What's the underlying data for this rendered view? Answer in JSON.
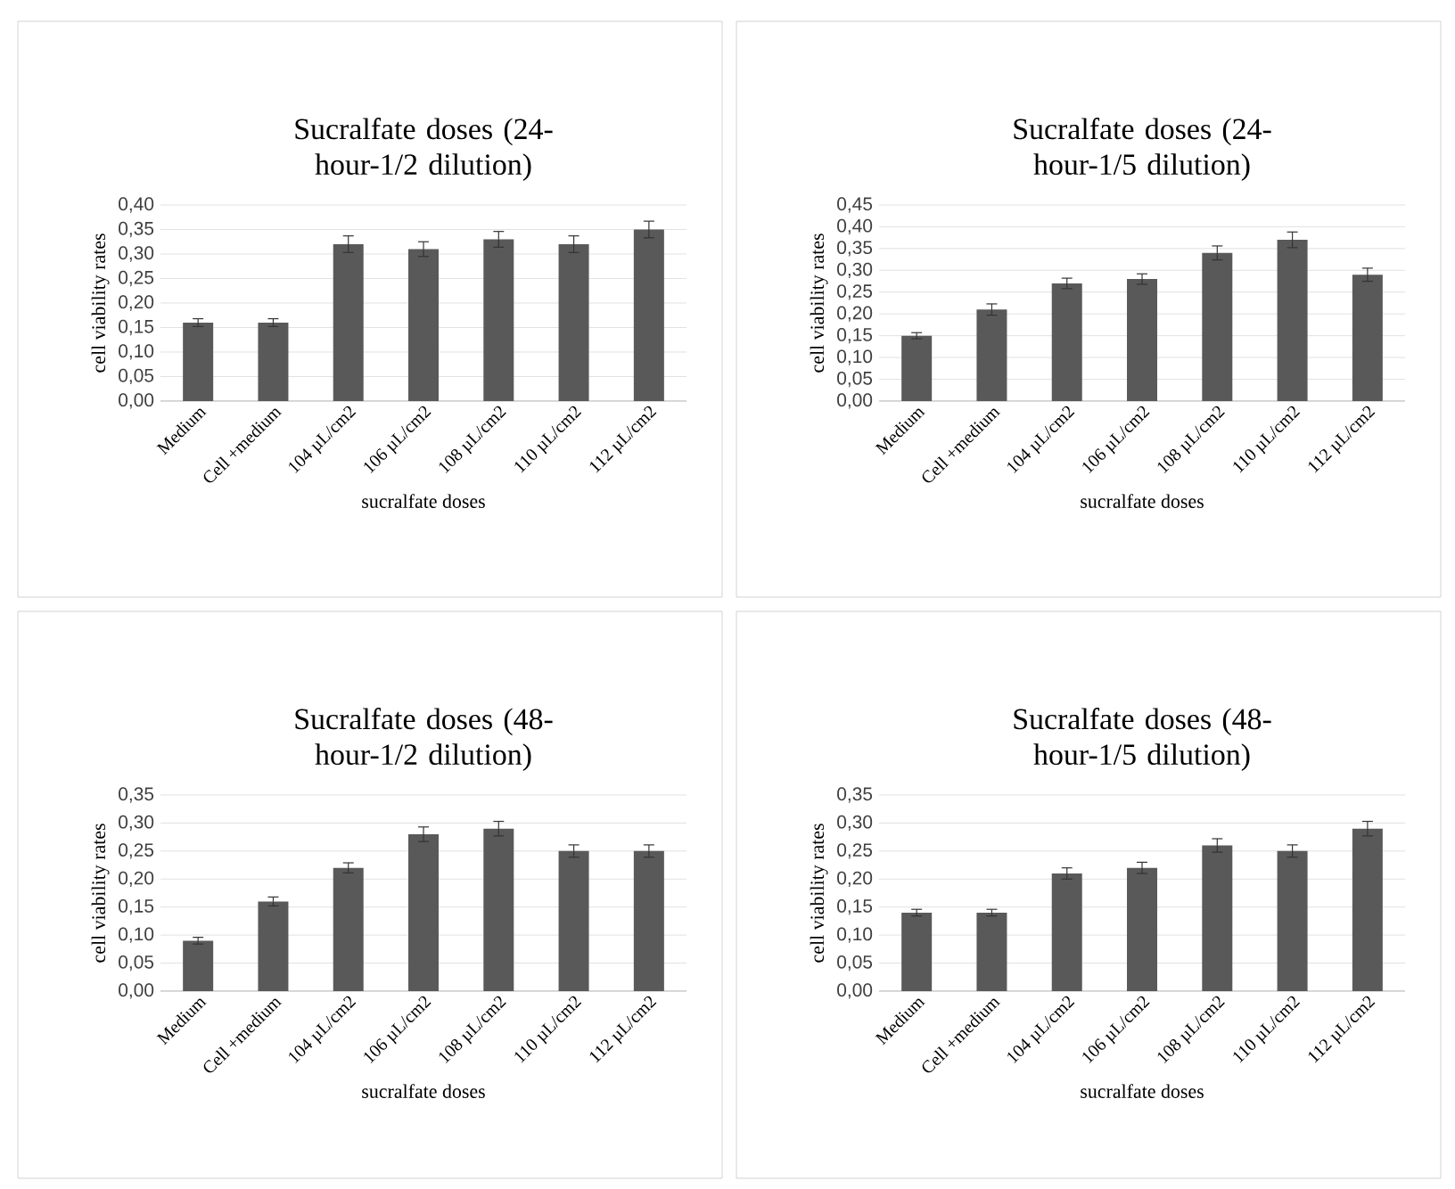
{
  "chart_data": [
    {
      "type": "bar",
      "title": "Sucralfate doses (24-hour-1/2 dilution)",
      "xlabel": "sucralfate doses",
      "ylabel": "cell viability rates",
      "categories": [
        "Medium",
        "Cell +medium",
        "104 µL/cm2",
        "106 µL/cm2",
        "108 µL/cm2",
        "110 µL/cm2",
        "112 µL/cm2"
      ],
      "values": [
        0.16,
        0.16,
        0.32,
        0.31,
        0.33,
        0.32,
        0.35
      ],
      "errors": [
        0.008,
        0.008,
        0.017,
        0.015,
        0.016,
        0.017,
        0.017
      ],
      "color": "#595959",
      "ylim": [
        0,
        0.4
      ],
      "yticks": [
        {
          "value": 0,
          "label": "0,00"
        },
        {
          "value": 0.05,
          "label": "0,05"
        },
        {
          "value": 0.1,
          "label": "0,10"
        },
        {
          "value": 0.15,
          "label": "0,15"
        },
        {
          "value": 0.2,
          "label": "0,20"
        },
        {
          "value": 0.25,
          "label": "0,25"
        },
        {
          "value": 0.3,
          "label": "0,30"
        },
        {
          "value": 0.35,
          "label": "0,35"
        },
        {
          "value": 0.4,
          "label": "0,40"
        }
      ],
      "grid": "y"
    },
    {
      "type": "bar",
      "title": "Sucralfate doses (24-hour-1/5 dilution)",
      "xlabel": "sucralfate doses",
      "ylabel": "cell viability rates",
      "categories": [
        "Medium",
        "Cell +medium",
        "104 µL/cm2",
        "106 µL/cm2",
        "108 µL/cm2",
        "110 µL/cm2",
        "112 µL/cm2"
      ],
      "values": [
        0.15,
        0.21,
        0.27,
        0.28,
        0.34,
        0.37,
        0.29
      ],
      "errors": [
        0.007,
        0.013,
        0.012,
        0.012,
        0.016,
        0.018,
        0.015
      ],
      "color": "#595959",
      "ylim": [
        0,
        0.45
      ],
      "yticks": [
        {
          "value": 0,
          "label": "0,00"
        },
        {
          "value": 0.05,
          "label": "0,05"
        },
        {
          "value": 0.1,
          "label": "0,10"
        },
        {
          "value": 0.15,
          "label": "0,15"
        },
        {
          "value": 0.2,
          "label": "0,20"
        },
        {
          "value": 0.25,
          "label": "0,25"
        },
        {
          "value": 0.3,
          "label": "0,30"
        },
        {
          "value": 0.35,
          "label": "0,35"
        },
        {
          "value": 0.4,
          "label": "0,40"
        },
        {
          "value": 0.45,
          "label": "0,45"
        }
      ],
      "grid": "y"
    },
    {
      "type": "bar",
      "title": "Sucralfate doses (48-hour-1/2 dilution)",
      "xlabel": "sucralfate doses",
      "ylabel": "cell viability rates",
      "categories": [
        "Medium",
        "Cell +medium",
        "104 µL/cm2",
        "106 µL/cm2",
        "108 µL/cm2",
        "110 µL/cm2",
        "112 µL/cm2"
      ],
      "values": [
        0.09,
        0.16,
        0.22,
        0.28,
        0.29,
        0.25,
        0.25
      ],
      "errors": [
        0.006,
        0.008,
        0.009,
        0.013,
        0.013,
        0.011,
        0.011
      ],
      "color": "#595959",
      "ylim": [
        0,
        0.35
      ],
      "yticks": [
        {
          "value": 0,
          "label": "0,00"
        },
        {
          "value": 0.05,
          "label": "0,05"
        },
        {
          "value": 0.1,
          "label": "0,10"
        },
        {
          "value": 0.15,
          "label": "0,15"
        },
        {
          "value": 0.2,
          "label": "0,20"
        },
        {
          "value": 0.25,
          "label": "0,25"
        },
        {
          "value": 0.3,
          "label": "0,30"
        },
        {
          "value": 0.35,
          "label": "0,35"
        }
      ],
      "grid": "y"
    },
    {
      "type": "bar",
      "title": "Sucralfate doses (48-hour-1/5 dilution)",
      "xlabel": "sucralfate doses",
      "ylabel": "cell viability rates",
      "categories": [
        "Medium",
        "Cell +medium",
        "104 µL/cm2",
        "106 µL/cm2",
        "108 µL/cm2",
        "110 µL/cm2",
        "112 µL/cm2"
      ],
      "values": [
        0.14,
        0.14,
        0.21,
        0.22,
        0.26,
        0.25,
        0.29
      ],
      "errors": [
        0.006,
        0.006,
        0.01,
        0.01,
        0.012,
        0.011,
        0.013
      ],
      "color": "#595959",
      "ylim": [
        0,
        0.35
      ],
      "yticks": [
        {
          "value": 0,
          "label": "0,00"
        },
        {
          "value": 0.05,
          "label": "0,05"
        },
        {
          "value": 0.1,
          "label": "0,10"
        },
        {
          "value": 0.15,
          "label": "0,15"
        },
        {
          "value": 0.2,
          "label": "0,20"
        },
        {
          "value": 0.25,
          "label": "0,25"
        },
        {
          "value": 0.3,
          "label": "0,30"
        },
        {
          "value": 0.35,
          "label": "0,35"
        }
      ],
      "grid": "y"
    }
  ]
}
